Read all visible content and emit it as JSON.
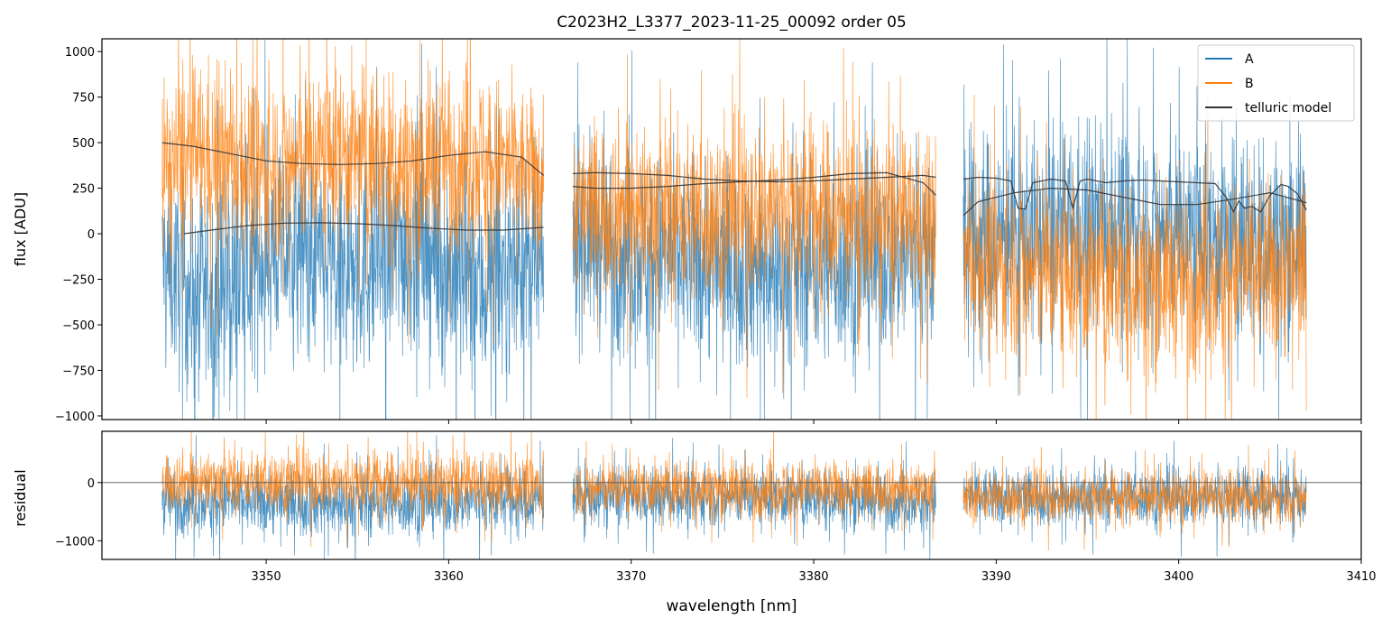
{
  "chart_data": {
    "type": "line",
    "title": "C2023H2_L3377_2023-11-25_00092  order 05",
    "xlabel": "wavelength [nm]",
    "x_ticks": [
      3350,
      3360,
      3370,
      3380,
      3390,
      3400,
      3410
    ],
    "xlim": [
      3341.0,
      3410.0
    ],
    "legend": {
      "placement": "top-right",
      "entries": [
        {
          "label": "A",
          "color": "#1f77b4"
        },
        {
          "label": "B",
          "color": "#ff7f0e"
        },
        {
          "label": "telluric model",
          "color": "#333333"
        }
      ]
    },
    "panels": {
      "main": {
        "ylabel": "flux [ADU]",
        "ylim": [
          -1020,
          1070
        ],
        "y_ticks": [
          -1000,
          -750,
          -500,
          -250,
          0,
          250,
          500,
          750,
          1000
        ],
        "y_tick_labels": [
          "−1000",
          "−750",
          "−500",
          "−250",
          "0",
          "250",
          "500",
          "750",
          "1000"
        ]
      },
      "residual": {
        "ylabel": "residual",
        "ylim": [
          -1320,
          880
        ],
        "y_ticks": [
          -1000,
          0
        ],
        "y_tick_labels": [
          "−1000",
          "0"
        ],
        "zero_line": true
      }
    },
    "segments": [
      {
        "x_start": 3344.3,
        "x_end": 3365.2
      },
      {
        "x_start": 3366.8,
        "x_end": 3386.7
      },
      {
        "x_start": 3388.2,
        "x_end": 3407.0
      }
    ],
    "series": [
      {
        "name": "A",
        "color": "#1f77b4",
        "noisy": true,
        "main_envelope": {
          "x": [
            3344.3,
            3346,
            3348,
            3350,
            3352,
            3354,
            3356,
            3358,
            3360,
            3362,
            3364,
            3365.2,
            3366.8,
            3370,
            3374,
            3378,
            3382,
            3386.7,
            3388.2,
            3392,
            3396,
            3400,
            3404,
            3407.0
          ],
          "y_center": [
            -150,
            -350,
            -300,
            -100,
            -80,
            -250,
            -150,
            -50,
            -200,
            -300,
            -150,
            -250,
            0,
            -100,
            -150,
            -200,
            -150,
            -100,
            -50,
            0,
            50,
            0,
            -50,
            0
          ],
          "y_spread": [
            450,
            550,
            550,
            500,
            500,
            550,
            550,
            550,
            550,
            550,
            500,
            500,
            500,
            500,
            500,
            500,
            500,
            500,
            550,
            500,
            500,
            500,
            500,
            500
          ]
        },
        "residual_envelope": {
          "x": [
            3344.3,
            3355,
            3365.2,
            3366.8,
            3376,
            3386.7,
            3388.2,
            3398,
            3407.0
          ],
          "y_center": [
            -300,
            -350,
            -300,
            -250,
            -250,
            -300,
            -250,
            -250,
            -250
          ],
          "y_spread": [
            500,
            550,
            500,
            450,
            450,
            450,
            450,
            450,
            450
          ]
        }
      },
      {
        "name": "B",
        "color": "#ff7f0e",
        "noisy": true,
        "main_envelope": {
          "x": [
            3344.3,
            3346,
            3348,
            3350,
            3352,
            3354,
            3356,
            3358,
            3360,
            3362,
            3364,
            3365.2,
            3366.8,
            3370,
            3374,
            3378,
            3382,
            3386.7,
            3388.2,
            3392,
            3396,
            3400,
            3404,
            3407.0
          ],
          "y_center": [
            350,
            450,
            400,
            350,
            400,
            450,
            400,
            350,
            450,
            400,
            350,
            300,
            150,
            150,
            100,
            150,
            100,
            50,
            -150,
            -200,
            -250,
            -250,
            -200,
            -200
          ],
          "y_spread": [
            400,
            450,
            450,
            450,
            450,
            450,
            450,
            450,
            450,
            450,
            400,
            400,
            400,
            450,
            450,
            450,
            450,
            400,
            400,
            450,
            450,
            450,
            450,
            450
          ]
        },
        "residual_envelope": {
          "x": [
            3344.3,
            3355,
            3365.2,
            3366.8,
            3376,
            3386.7,
            3388.2,
            3398,
            3407.0
          ],
          "y_center": [
            50,
            0,
            -50,
            -100,
            -100,
            -100,
            -250,
            -250,
            -250
          ],
          "y_spread": [
            450,
            500,
            450,
            400,
            450,
            400,
            400,
            400,
            400
          ]
        }
      },
      {
        "name": "telluric model",
        "color": "#333333",
        "curves": [
          {
            "x": [
              3344.3,
              3346,
              3348,
              3350,
              3352,
              3354,
              3356,
              3358,
              3360,
              3362,
              3364,
              3365.2
            ],
            "y": [
              500,
              480,
              440,
              400,
              385,
              380,
              385,
              400,
              430,
              450,
              420,
              320
            ]
          },
          {
            "x": [
              3345.5,
              3347,
              3349,
              3351,
              3353,
              3355,
              3357,
              3359,
              3361,
              3363,
              3365.2
            ],
            "y": [
              0,
              20,
              45,
              58,
              60,
              55,
              45,
              30,
              20,
              20,
              35
            ]
          },
          {
            "x": [
              3366.8,
              3368,
              3370,
              3372,
              3374,
              3376,
              3378,
              3380,
              3382,
              3384,
              3386,
              3386.7
            ],
            "y": [
              330,
              335,
              330,
              320,
              300,
              290,
              285,
              290,
              300,
              310,
              320,
              310
            ]
          },
          {
            "x": [
              3366.8,
              3368,
              3370,
              3372,
              3374,
              3376,
              3378,
              3380,
              3382,
              3384,
              3386,
              3386.7
            ],
            "y": [
              260,
              250,
              250,
              260,
              275,
              285,
              295,
              310,
              330,
              335,
              280,
              210
            ]
          },
          {
            "x": [
              3388.2,
              3389,
              3391,
              3393,
              3395,
              3397,
              3399,
              3401,
              3403,
              3405,
              3407.0
            ],
            "y": [
              100,
              175,
              225,
              250,
              240,
              200,
              160,
              160,
              190,
              225,
              170
            ]
          },
          {
            "x": [
              3388.2,
              3389,
              3390,
              3390.8,
              3391.2,
              3391.6,
              3392,
              3393,
              3393.8,
              3394.2,
              3394.6,
              3395,
              3396,
              3397,
              3398,
              3399,
              3400,
              3401,
              3402,
              3402.6,
              3403,
              3403.3,
              3403.6,
              3404,
              3404.5,
              3405,
              3405.6,
              3406,
              3406.5,
              3407.0
            ],
            "y": [
              300,
              310,
              305,
              290,
              140,
              135,
              280,
              300,
              290,
              140,
              290,
              300,
              280,
              290,
              295,
              290,
              285,
              280,
              275,
              200,
              120,
              180,
              140,
              150,
              120,
              210,
              270,
              260,
              220,
              130
            ]
          }
        ]
      }
    ]
  }
}
